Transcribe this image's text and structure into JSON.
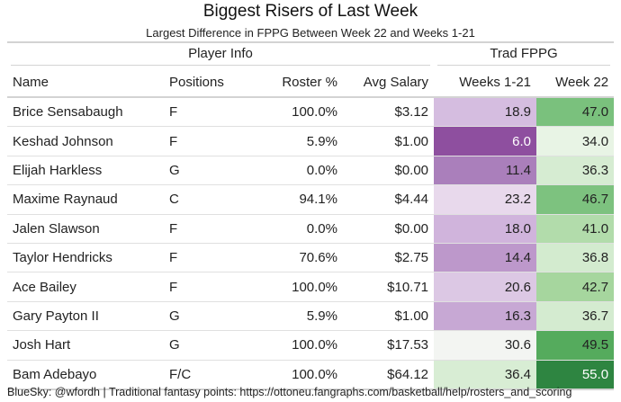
{
  "header": {
    "title": "Biggest Risers of Last Week",
    "subtitle": "Largest Difference in FPPG Between Week 22 and Weeks 1-21"
  },
  "spanners": {
    "player_info": "Player Info",
    "trad_fppg": "Trad FPPG"
  },
  "columns": {
    "name": "Name",
    "positions": "Positions",
    "roster": "Roster %",
    "avg_salary": "Avg Salary",
    "weeks_1_21": "Weeks 1-21",
    "week_22": "Week 22"
  },
  "rows": [
    {
      "name": "Brice Sensabaugh",
      "positions": "F",
      "roster": "100.0%",
      "salary": "$3.12",
      "w121": "18.9",
      "w22": "47.0",
      "w121_bg": "#d5bde0",
      "w22_bg": "#7ac17d",
      "w121_fg": "#222222",
      "w22_fg": "#222222"
    },
    {
      "name": "Keshad Johnson",
      "positions": "F",
      "roster": "5.9%",
      "salary": "$1.00",
      "w121": "6.0",
      "w22": "34.0",
      "w121_bg": "#8e4f9f",
      "w22_bg": "#e8f4e5",
      "w121_fg": "#ffffff",
      "w22_fg": "#222222"
    },
    {
      "name": "Elijah Harkless",
      "positions": "G",
      "roster": "0.0%",
      "salary": "$0.00",
      "w121": "11.4",
      "w22": "36.3",
      "w121_bg": "#aa7fbb",
      "w22_bg": "#d6ecd2",
      "w121_fg": "#222222",
      "w22_fg": "#222222"
    },
    {
      "name": "Maxime Raynaud",
      "positions": "C",
      "roster": "94.1%",
      "salary": "$4.44",
      "w121": "23.2",
      "w22": "46.7",
      "w121_bg": "#e8d9ec",
      "w22_bg": "#7dc27f",
      "w121_fg": "#222222",
      "w22_fg": "#222222"
    },
    {
      "name": "Jalen Slawson",
      "positions": "F",
      "roster": "0.0%",
      "salary": "$0.00",
      "w121": "18.0",
      "w22": "41.0",
      "w121_bg": "#d0b4dc",
      "w22_bg": "#b2dcab",
      "w121_fg": "#222222",
      "w22_fg": "#222222"
    },
    {
      "name": "Taylor Hendricks",
      "positions": "F",
      "roster": "70.6%",
      "salary": "$2.75",
      "w121": "14.4",
      "w22": "36.8",
      "w121_bg": "#bd98cb",
      "w22_bg": "#d3ebcf",
      "w121_fg": "#222222",
      "w22_fg": "#222222"
    },
    {
      "name": "Ace Bailey",
      "positions": "F",
      "roster": "100.0%",
      "salary": "$10.71",
      "w121": "20.6",
      "w22": "42.7",
      "w121_bg": "#dcc8e4",
      "w22_bg": "#a6d69e",
      "w121_fg": "#222222",
      "w22_fg": "#222222"
    },
    {
      "name": "Gary Payton II",
      "positions": "G",
      "roster": "5.9%",
      "salary": "$1.00",
      "w121": "16.3",
      "w22": "36.7",
      "w121_bg": "#c7a8d4",
      "w22_bg": "#d4ebd0",
      "w121_fg": "#222222",
      "w22_fg": "#222222"
    },
    {
      "name": "Josh Hart",
      "positions": "G",
      "roster": "100.0%",
      "salary": "$17.53",
      "w121": "30.6",
      "w22": "49.5",
      "w121_bg": "#f3f5f2",
      "w22_bg": "#55ab5d",
      "w121_fg": "#222222",
      "w22_fg": "#222222"
    },
    {
      "name": "Bam Adebayo",
      "positions": "F/C",
      "roster": "100.0%",
      "salary": "$64.12",
      "w121": "36.4",
      "w22": "55.0",
      "w121_bg": "#d8edd4",
      "w22_bg": "#2e8541",
      "w121_fg": "#222222",
      "w22_fg": "#ffffff"
    }
  ],
  "footer": {
    "text": "BlueSky: @wfordh | Traditional fantasy points: https://ottoneu.fangraphs.com/basketball/help/rosters_and_scoring"
  }
}
